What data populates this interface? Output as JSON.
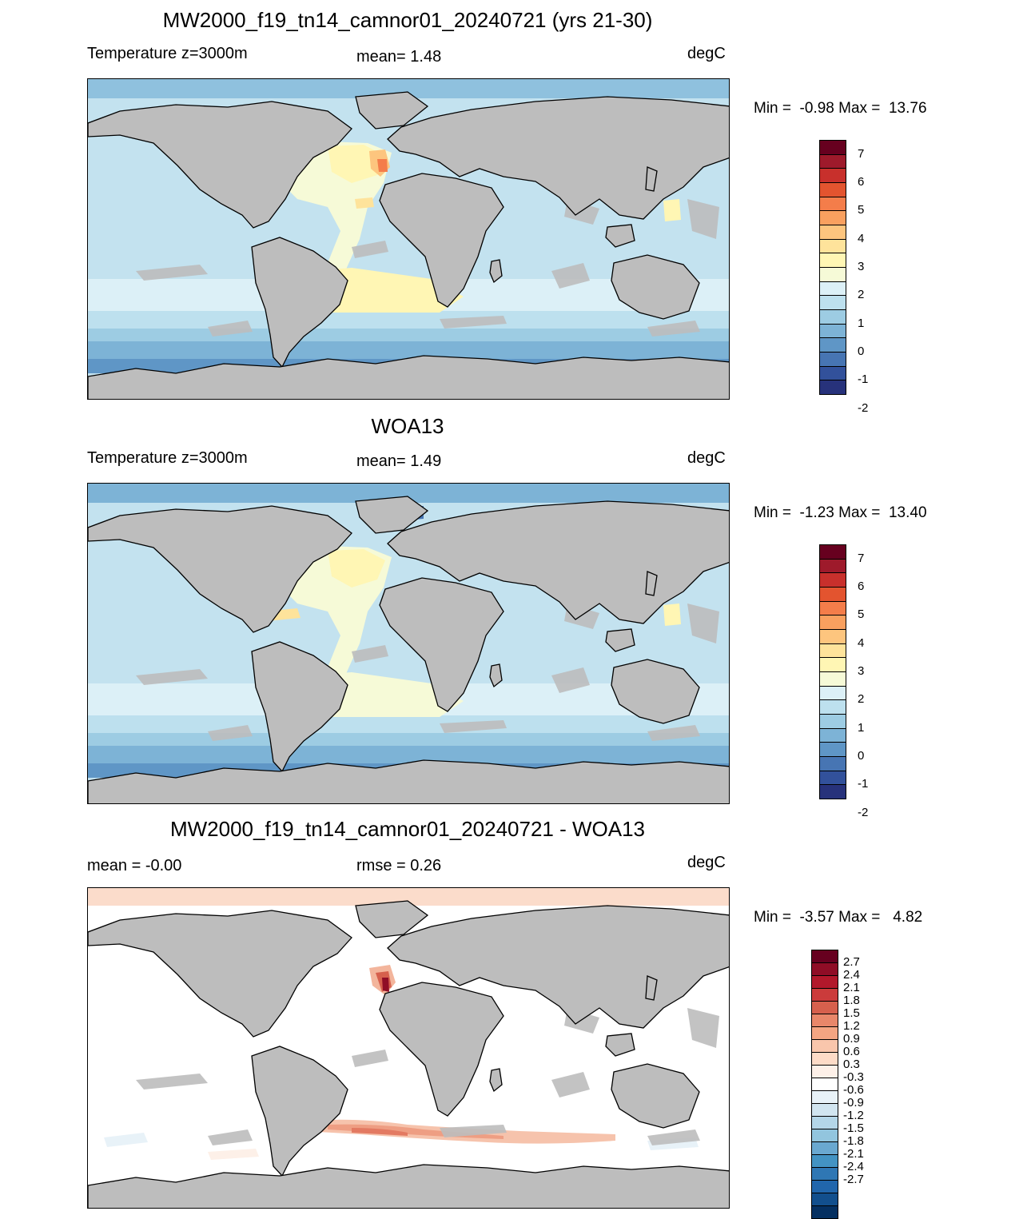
{
  "panels": [
    {
      "title": "MW2000_f19_tn14_camnor01_20240721 (yrs 21-30)",
      "left_label": "Temperature z=3000m",
      "center_label": "mean=   1.48",
      "units": "degC",
      "minmax": "Min =  -0.98 Max =  13.76",
      "map_type": "model",
      "colorbar": {
        "colors": [
          "#67001f",
          "#9e1a2b",
          "#c8302c",
          "#e3542f",
          "#f47d4a",
          "#f9a05f",
          "#fdc57e",
          "#fee39b",
          "#fff6b4",
          "#f6fad7",
          "#dcf0f7",
          "#bde0ee",
          "#9dcce3",
          "#7db3d6",
          "#5f96c6",
          "#4775b3",
          "#32519b",
          "#27327b"
        ],
        "labels": [
          "7",
          "6",
          "5",
          "4",
          "3",
          "2",
          "1",
          "0",
          "-1",
          "-2"
        ]
      }
    },
    {
      "title": "WOA13",
      "left_label": "Temperature z=3000m",
      "center_label": "mean=   1.49",
      "units": "degC",
      "minmax": "Min =  -1.23 Max =  13.40",
      "map_type": "obs",
      "colorbar": {
        "colors": [
          "#67001f",
          "#9e1a2b",
          "#c8302c",
          "#e3542f",
          "#f47d4a",
          "#f9a05f",
          "#fdc57e",
          "#fee39b",
          "#fff6b4",
          "#f6fad7",
          "#dcf0f7",
          "#bde0ee",
          "#9dcce3",
          "#7db3d6",
          "#5f96c6",
          "#4775b3",
          "#32519b",
          "#27327b"
        ],
        "labels": [
          "7",
          "6",
          "5",
          "4",
          "3",
          "2",
          "1",
          "0",
          "-1",
          "-2"
        ]
      }
    },
    {
      "title": "MW2000_f19_tn14_camnor01_20240721 - WOA13",
      "left_label": "mean =  -0.00",
      "center_label": "rmse =   0.26",
      "units": "degC",
      "minmax": "Min =  -3.57 Max =   4.82",
      "map_type": "diff",
      "colorbar": {
        "colors": [
          "#67001f",
          "#8f0d26",
          "#b2182b",
          "#cb3b3b",
          "#d6604d",
          "#e8876a",
          "#f4a582",
          "#f9c6ac",
          "#fddbc7",
          "#fdf0e8",
          "#ffffff",
          "#e8f2f8",
          "#d1e5f0",
          "#b4d6e8",
          "#92c5de",
          "#6aa8d0",
          "#4393c3",
          "#2f77b4",
          "#2166ac",
          "#124f8d",
          "#053061"
        ],
        "labels": [
          "2.7",
          "2.4",
          "2.1",
          "1.8",
          "1.5",
          "1.2",
          "0.9",
          "0.6",
          "0.3",
          "-0.3",
          "-0.6",
          "-0.9",
          "-1.2",
          "-1.5",
          "-1.8",
          "-2.1",
          "-2.4",
          "-2.7"
        ]
      }
    }
  ]
}
